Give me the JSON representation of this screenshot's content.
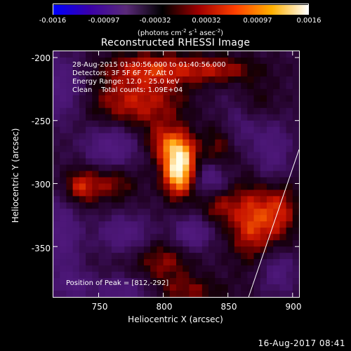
{
  "colorbar": {
    "ticks": [
      "-0.0016",
      "-0.00097",
      "-0.00032",
      "0.00032",
      "0.00097",
      "0.0016"
    ],
    "units_prefix": "(photons cm",
    "units_exp1": "-2",
    "units_mid": " s",
    "units_exp2": "-1",
    "units_mid2": " asec",
    "units_exp3": "-2",
    "units_suffix": ")",
    "colors": [
      "#0000ff",
      "#3a00a8",
      "#5a2a78",
      "#000000",
      "#a00000",
      "#ff4000",
      "#ffb000",
      "#ffffff"
    ]
  },
  "info": {
    "line1": "28-Aug-2015 01:30:56.000 to 01:40:56.000",
    "line2": "Detectors: 3F 5F 6F 7F, Att 0",
    "line3": "Energy Range: 12.0 - 25.0 keV",
    "line4": "Clean    Total counts: 1.09E+04",
    "peak": "Position of Peak = [812,-292]"
  },
  "timestamp": "16-Aug-2017 08:41",
  "chart_data": {
    "type": "heatmap",
    "title": "Reconstructed RHESSI Image",
    "xlabel": "Heliocentric X (arcsec)",
    "ylabel": "Heliocentric Y (arcsec)",
    "xlim": [
      715,
      905
    ],
    "ylim": [
      -390,
      -195
    ],
    "xticks": [
      750,
      800,
      850,
      900
    ],
    "yticks": [
      -200,
      -250,
      -300,
      -350
    ],
    "xtick_labels": [
      "750",
      "800",
      "850",
      "900"
    ],
    "ytick_labels": [
      "-200",
      "-250",
      "-300",
      "-350"
    ],
    "colorbar_range": [
      -0.0016,
      0.0016
    ],
    "peak": [
      812,
      -292
    ],
    "sources": [
      {
        "x": 812,
        "y": -293,
        "amp": 1.0,
        "sx": 9,
        "sy": 13
      },
      {
        "x": 814,
        "y": -275,
        "amp": 0.65,
        "sx": 9,
        "sy": 12
      },
      {
        "x": 800,
        "y": -268,
        "amp": 0.45,
        "sx": 10,
        "sy": 10
      },
      {
        "x": 780,
        "y": -235,
        "amp": 0.55,
        "sx": 28,
        "sy": 16
      },
      {
        "x": 792,
        "y": -208,
        "amp": 0.5,
        "sx": 26,
        "sy": 9
      },
      {
        "x": 846,
        "y": -210,
        "amp": 0.45,
        "sx": 22,
        "sy": 8
      },
      {
        "x": 868,
        "y": -236,
        "amp": 0.4,
        "sx": 14,
        "sy": 12
      },
      {
        "x": 735,
        "y": -303,
        "amp": 0.55,
        "sx": 9,
        "sy": 10
      },
      {
        "x": 760,
        "y": -300,
        "amp": 0.4,
        "sx": 14,
        "sy": 10
      },
      {
        "x": 843,
        "y": -270,
        "amp": 0.45,
        "sx": 9,
        "sy": 22
      },
      {
        "x": 868,
        "y": -330,
        "amp": 0.65,
        "sx": 12,
        "sy": 22
      },
      {
        "x": 890,
        "y": -320,
        "amp": 0.55,
        "sx": 10,
        "sy": 18
      },
      {
        "x": 800,
        "y": -362,
        "amp": 0.4,
        "sx": 16,
        "sy": 12
      },
      {
        "x": 820,
        "y": -385,
        "amp": 0.35,
        "sx": 20,
        "sy": 8
      },
      {
        "x": 842,
        "y": -318,
        "amp": 0.35,
        "sx": 10,
        "sy": 10
      },
      {
        "x": 760,
        "y": -270,
        "amp": -0.55,
        "sx": 14,
        "sy": 12
      },
      {
        "x": 720,
        "y": -225,
        "amp": -0.5,
        "sx": 14,
        "sy": 18
      },
      {
        "x": 722,
        "y": -340,
        "amp": -0.45,
        "sx": 10,
        "sy": 22
      },
      {
        "x": 770,
        "y": -340,
        "amp": -0.45,
        "sx": 14,
        "sy": 10
      },
      {
        "x": 838,
        "y": -295,
        "amp": -0.6,
        "sx": 10,
        "sy": 10
      },
      {
        "x": 822,
        "y": -340,
        "amp": -0.55,
        "sx": 10,
        "sy": 9
      },
      {
        "x": 855,
        "y": -245,
        "amp": -0.45,
        "sx": 16,
        "sy": 18
      },
      {
        "x": 885,
        "y": -280,
        "amp": -0.4,
        "sx": 10,
        "sy": 20
      },
      {
        "x": 888,
        "y": -370,
        "amp": -0.4,
        "sx": 10,
        "sy": 12
      },
      {
        "x": 770,
        "y": -385,
        "amp": -0.4,
        "sx": 16,
        "sy": 8
      },
      {
        "x": 730,
        "y": -380,
        "amp": -0.35,
        "sx": 10,
        "sy": 8
      }
    ],
    "limb_line": [
      [
        866,
        -390
      ],
      [
        905,
        -273
      ]
    ]
  }
}
